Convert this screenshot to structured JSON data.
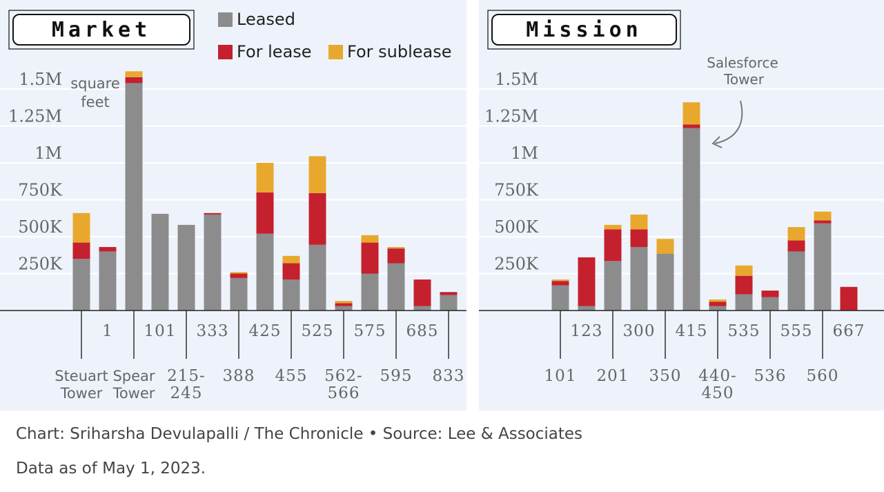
{
  "legend": [
    {
      "name": "Leased",
      "color": "#8c8c8c"
    },
    {
      "name": "For lease",
      "color": "#c4202e"
    },
    {
      "name": "For sublease",
      "color": "#e8a82d"
    }
  ],
  "y_ticks": [
    "250K",
    "500K",
    "750K",
    "1M",
    "1.25M",
    "1.5M"
  ],
  "y_unit_label": "square feet",
  "annotation": "Salesforce Tower",
  "footer": {
    "credit": "Chart: Sriharsha Devulapalli / The Chronicle • Source: Lee & Associates",
    "data_as_of": "Data as of May 1, 2023."
  },
  "chart_data": [
    {
      "type": "bar",
      "stacked": true,
      "title": "Market",
      "ylim": [
        0,
        1600000
      ],
      "grid": true,
      "categories": [
        "Steuart Tower",
        "1",
        "Spear Tower",
        "101",
        "215-245",
        "333",
        "388",
        "425",
        "455",
        "525",
        "562-566",
        "575",
        "595",
        "685",
        "833"
      ],
      "series": [
        {
          "name": "Leased",
          "values": [
            350000,
            400000,
            1540000,
            655000,
            580000,
            650000,
            220000,
            520000,
            210000,
            445000,
            30000,
            250000,
            320000,
            30000,
            105000
          ]
        },
        {
          "name": "For lease",
          "values": [
            110000,
            30000,
            40000,
            0,
            0,
            10000,
            30000,
            280000,
            110000,
            350000,
            20000,
            210000,
            100000,
            180000,
            20000
          ]
        },
        {
          "name": "For sublease",
          "values": [
            200000,
            0,
            40000,
            0,
            0,
            0,
            10000,
            200000,
            50000,
            250000,
            15000,
            50000,
            10000,
            0,
            0
          ]
        }
      ]
    },
    {
      "type": "bar",
      "stacked": true,
      "title": "Mission",
      "ylim": [
        0,
        1600000
      ],
      "grid": true,
      "categories": [
        "101",
        "123",
        "201",
        "300",
        "350",
        "415",
        "440-450",
        "535",
        "536",
        "555",
        "560",
        "667"
      ],
      "series": [
        {
          "name": "Leased",
          "values": [
            170000,
            30000,
            335000,
            430000,
            385000,
            1235000,
            30000,
            110000,
            90000,
            400000,
            590000,
            0
          ]
        },
        {
          "name": "For lease",
          "values": [
            30000,
            330000,
            215000,
            120000,
            0,
            25000,
            30000,
            125000,
            45000,
            75000,
            20000,
            160000
          ]
        },
        {
          "name": "For sublease",
          "values": [
            10000,
            0,
            30000,
            100000,
            100000,
            150000,
            15000,
            70000,
            0,
            90000,
            60000,
            0
          ]
        }
      ]
    }
  ]
}
